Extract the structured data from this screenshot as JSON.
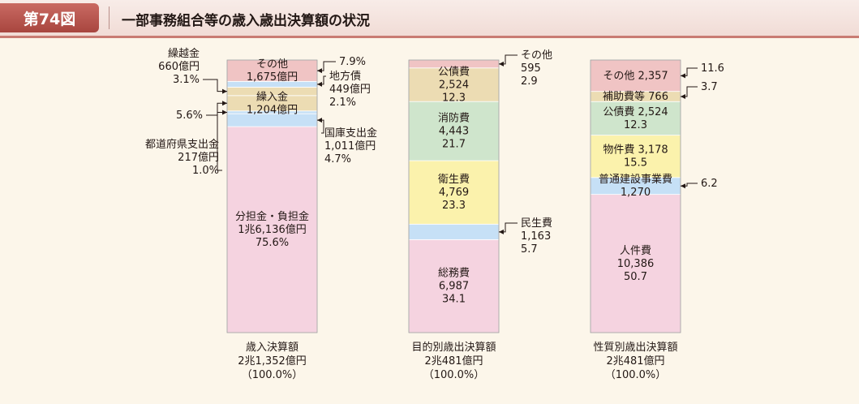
{
  "header": {
    "figure_label": "第74図",
    "title": "一部事務組合等の歳入歳出決算額の状況"
  },
  "colors": {
    "pink": "#f5d3e0",
    "light_blue": "#c6e0f6",
    "tan": "#ecdcb3",
    "green": "#cfe5cc",
    "yellow": "#fbf2ac",
    "rose": "#f0c4c4",
    "line": "#231815"
  },
  "chart_data": [
    {
      "type": "stacked_bar",
      "caption": [
        "歳入決算額",
        "2兆1,352億円",
        "（100.0%）"
      ],
      "segments": [
        {
          "name": "分担金・負担金",
          "value": 16136,
          "share": 75.6,
          "color": "pink",
          "inside": [
            "分担金・負担金",
            "1兆6,136億円",
            "75.6%"
          ]
        },
        {
          "name": "国庫支出金",
          "value": 1011,
          "share": 4.7,
          "color": "light_blue",
          "outside": {
            "side": "right",
            "lines": [
              "国庫支出金",
              "1,011億円",
              "4.7%"
            ]
          }
        },
        {
          "name": "都道府県支出金",
          "value": 217,
          "share": 1.0,
          "color": "light_blue",
          "outside": {
            "side": "left",
            "lines": [
              "都道府県支出金",
              "217億円",
              "1.0%"
            ]
          }
        },
        {
          "name": "繰入金",
          "value": 1204,
          "share": 5.6,
          "color": "tan",
          "inside": [
            "繰入金",
            "1,204億円"
          ],
          "outside": {
            "side": "left",
            "lines": [
              "5.6%"
            ]
          }
        },
        {
          "name": "繰越金",
          "value": 660,
          "share": 3.1,
          "color": "tan",
          "outside": {
            "side": "left",
            "lines": [
              "繰越金",
              "660億円",
              "3.1%"
            ]
          }
        },
        {
          "name": "地方債",
          "value": 449,
          "share": 2.1,
          "color": "light_blue",
          "outside": {
            "side": "right",
            "lines": [
              "地方債",
              "449億円",
              "2.1%"
            ]
          }
        },
        {
          "name": "その他",
          "value": 1675,
          "share": 7.9,
          "color": "rose",
          "inside": [
            "その他",
            "1,675億円"
          ],
          "outside": {
            "side": "right",
            "lines": [
              "7.9%"
            ]
          }
        }
      ]
    },
    {
      "type": "stacked_bar",
      "caption": [
        "目的別歳出決算額",
        "2兆481億円",
        "（100.0%）"
      ],
      "segments": [
        {
          "name": "総務費",
          "value": 6987,
          "share": 34.1,
          "color": "pink",
          "inside": [
            "総務費",
            "6,987",
            "34.1"
          ]
        },
        {
          "name": "民生費",
          "value": 1163,
          "share": 5.7,
          "color": "light_blue",
          "outside": {
            "side": "right",
            "lines": [
              "民生費",
              "1,163",
              "5.7"
            ]
          }
        },
        {
          "name": "衛生費",
          "value": 4769,
          "share": 23.3,
          "color": "yellow",
          "inside": [
            "衛生費",
            "4,769",
            "23.3"
          ]
        },
        {
          "name": "消防費",
          "value": 4443,
          "share": 21.7,
          "color": "green",
          "inside": [
            "消防費",
            "4,443",
            "21.7"
          ]
        },
        {
          "name": "公債費",
          "value": 2524,
          "share": 12.3,
          "color": "tan",
          "inside": [
            "公債費",
            "2,524",
            "12.3"
          ]
        },
        {
          "name": "その他",
          "value": 595,
          "share": 2.9,
          "color": "rose",
          "outside": {
            "side": "right",
            "lines": [
              "その他",
              "595",
              "2.9"
            ]
          }
        }
      ]
    },
    {
      "type": "stacked_bar",
      "caption": [
        "性質別歳出決算額",
        "2兆481億円",
        "（100.0%）"
      ],
      "segments": [
        {
          "name": "人件費",
          "value": 10386,
          "share": 50.7,
          "color": "pink",
          "inside": [
            "人件費",
            "10,386",
            "50.7"
          ]
        },
        {
          "name": "普通建設事業費",
          "value": 1270,
          "share": 6.2,
          "color": "light_blue",
          "inside": [
            "普通建設事業費",
            "1,270"
          ],
          "outside": {
            "side": "right",
            "lines": [
              "6.2"
            ]
          }
        },
        {
          "name": "物件費",
          "value": 3178,
          "share": 15.5,
          "color": "yellow",
          "inside": [
            "物件費 3,178",
            "15.5"
          ]
        },
        {
          "name": "公債費",
          "value": 2524,
          "share": 12.3,
          "color": "green",
          "inside": [
            "公債費 2,524",
            "12.3"
          ]
        },
        {
          "name": "補助費等",
          "value": 766,
          "share": 3.7,
          "color": "tan",
          "inside": [
            "補助費等 766"
          ],
          "outside": {
            "side": "right",
            "lines": [
              "3.7"
            ]
          }
        },
        {
          "name": "その他",
          "value": 2357,
          "share": 11.6,
          "color": "rose",
          "inside": [
            "その他 2,357"
          ],
          "outside": {
            "side": "right",
            "lines": [
              "11.6"
            ]
          }
        }
      ]
    }
  ]
}
